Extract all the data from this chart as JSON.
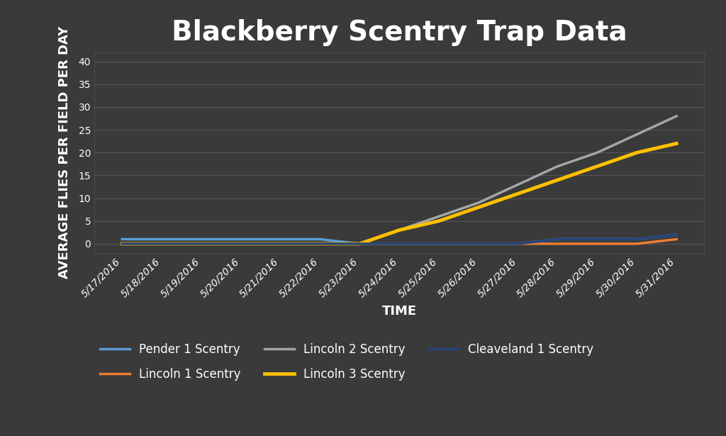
{
  "title": "Blackberry Scentry Trap Data",
  "xlabel": "TIME",
  "ylabel": "AVERAGE FLIES PER FIELD PER DAY",
  "background_color": "#3a3a3a",
  "plot_bg_color": "#3a3a3a",
  "text_color": "#ffffff",
  "grid_color": "#555555",
  "ylim": [
    -2,
    42
  ],
  "yticks": [
    0,
    5,
    10,
    15,
    20,
    25,
    30,
    35,
    40
  ],
  "dates": [
    "5/17/2016",
    "5/18/2016",
    "5/19/2016",
    "5/20/2016",
    "5/21/2016",
    "5/22/2016",
    "5/23/2016",
    "5/24/2016",
    "5/25/2016",
    "5/26/2016",
    "5/27/2016",
    "5/28/2016",
    "5/29/2016",
    "5/30/2016",
    "5/31/2016"
  ],
  "series": [
    {
      "label": "Pender 1 Scentry",
      "color": "#5b9bd5",
      "linewidth": 2.5,
      "values": [
        1,
        1,
        1,
        1,
        1,
        1,
        0,
        0,
        0,
        0,
        0,
        1,
        1,
        1,
        2
      ]
    },
    {
      "label": "Lincoln 1 Scentry",
      "color": "#ed7d31",
      "linewidth": 2.5,
      "values": [
        0,
        0,
        0,
        0,
        0,
        0,
        0,
        0,
        0,
        0,
        0,
        0,
        0,
        0,
        1
      ]
    },
    {
      "label": "Lincoln 2 Scentry",
      "color": "#a5a5a5",
      "linewidth": 2.5,
      "values": [
        0,
        0,
        0,
        0,
        0,
        0,
        0,
        3,
        6,
        9,
        13,
        17,
        20,
        24,
        28
      ]
    },
    {
      "label": "Lincoln 3 Scentry",
      "color": "#ffc000",
      "linewidth": 3.5,
      "values": [
        0,
        0,
        0,
        0,
        0,
        0,
        0,
        3,
        5,
        8,
        11,
        14,
        17,
        20,
        22
      ]
    },
    {
      "label": "Cleaveland 1 Scentry",
      "color": "#264478",
      "linewidth": 2.5,
      "values": [
        0,
        0,
        0,
        0,
        0,
        0,
        0,
        0,
        0,
        0,
        0,
        1,
        1,
        1,
        2
      ]
    }
  ],
  "legend_fontsize": 12,
  "title_fontsize": 28,
  "axis_label_fontsize": 13,
  "tick_fontsize": 10
}
